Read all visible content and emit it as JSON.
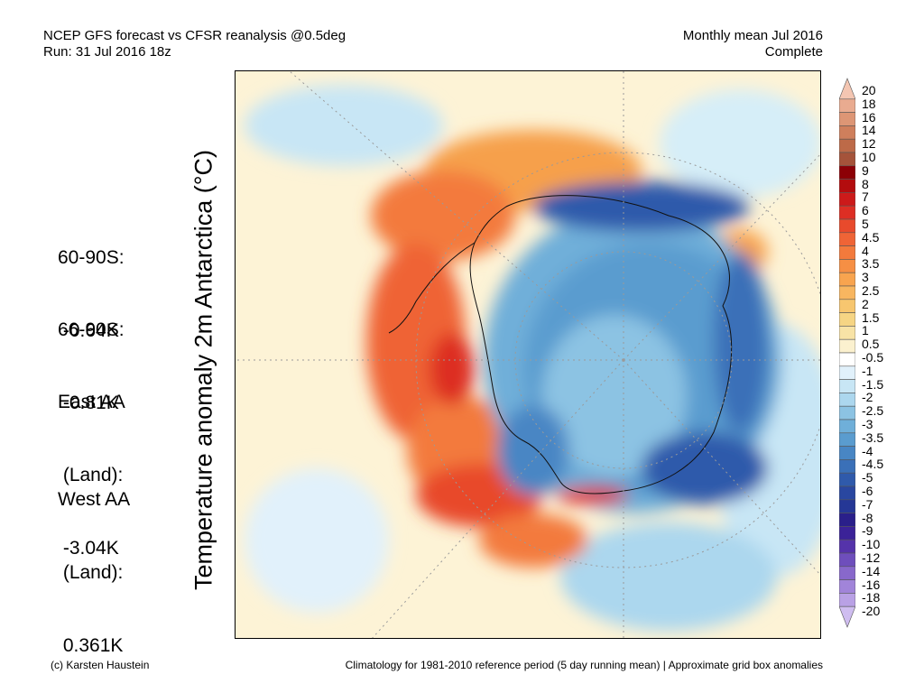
{
  "header": {
    "title_line1": "NCEP GFS forecast vs CFSR reanalysis @0.5deg",
    "title_line2": "Run: 31 Jul 2016 18z",
    "period_line1": "Monthly mean Jul 2016",
    "period_line2": "Complete"
  },
  "stats": [
    {
      "label": "60-90S:",
      "value": " -0.64K"
    },
    {
      "label": "66-90S:",
      "value": " -0.81K"
    },
    {
      "label": "East AA",
      "label2": " (Land):",
      "value": " -3.04K"
    },
    {
      "label": "West AA",
      "label2": " (Land):",
      "value": " 0.361K"
    }
  ],
  "map": {
    "ylabel": "Temperature anomaly 2m Antarctica (°C)",
    "projection": "south polar stereographic",
    "graticule": "dotted"
  },
  "colorbar": {
    "levels": [
      {
        "label": "20",
        "color": "#f4c6b2"
      },
      {
        "label": "18",
        "color": "#e9ab90"
      },
      {
        "label": "16",
        "color": "#dd9675"
      },
      {
        "label": "14",
        "color": "#cf7f5c"
      },
      {
        "label": "12",
        "color": "#bd6a48"
      },
      {
        "label": "10",
        "color": "#a5533a"
      },
      {
        "label": "9",
        "color": "#8c0006"
      },
      {
        "label": "8",
        "color": "#b30c0e"
      },
      {
        "label": "7",
        "color": "#cc1a1a"
      },
      {
        "label": "6",
        "color": "#dd2e24"
      },
      {
        "label": "5",
        "color": "#e84a2c"
      },
      {
        "label": "4.5",
        "color": "#ef6436"
      },
      {
        "label": "4",
        "color": "#f37a3c"
      },
      {
        "label": "3.5",
        "color": "#f68f44"
      },
      {
        "label": "3",
        "color": "#f8a44f"
      },
      {
        "label": "2.5",
        "color": "#f8b660"
      },
      {
        "label": "2",
        "color": "#f7c66f"
      },
      {
        "label": "1.5",
        "color": "#f6d584"
      },
      {
        "label": "1",
        "color": "#f8e3a6"
      },
      {
        "label": "0.5",
        "color": "#fbf1cf"
      },
      {
        "label": "-0.5",
        "color": "#ffffff"
      },
      {
        "label": "-1",
        "color": "#e1f1fb"
      },
      {
        "label": "-1.5",
        "color": "#c8e6f5"
      },
      {
        "label": "-2",
        "color": "#acd7ee"
      },
      {
        "label": "-2.5",
        "color": "#8cc3e3"
      },
      {
        "label": "-3",
        "color": "#6fafd9"
      },
      {
        "label": "-3.5",
        "color": "#5a9ccf"
      },
      {
        "label": "-4",
        "color": "#4886c4"
      },
      {
        "label": "-4.5",
        "color": "#3a70b8"
      },
      {
        "label": "-5",
        "color": "#2f5aab"
      },
      {
        "label": "-6",
        "color": "#2947a0"
      },
      {
        "label": "-7",
        "color": "#253796"
      },
      {
        "label": "-8",
        "color": "#2a1f8a"
      },
      {
        "label": "-9",
        "color": "#3b2298"
      },
      {
        "label": "-10",
        "color": "#5533aa"
      },
      {
        "label": "-12",
        "color": "#6e4ebc"
      },
      {
        "label": "-14",
        "color": "#8868cb"
      },
      {
        "label": "-16",
        "color": "#a184d9"
      },
      {
        "label": "-18",
        "color": "#b9a1e5"
      },
      {
        "label": "-20",
        "color": "#cfbdf0"
      }
    ]
  },
  "footer": {
    "credit": "(c) Karsten Haustein",
    "note": "Climatology for 1981-2010 reference period (5 day running mean) | Approximate grid box anomalies"
  }
}
